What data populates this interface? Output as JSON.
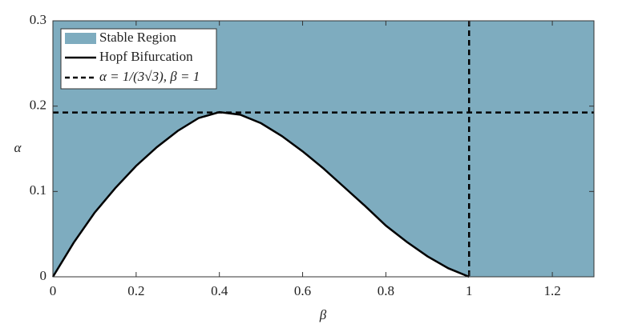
{
  "chart_data": {
    "type": "region",
    "x_label": "β",
    "y_label": "α",
    "xlim": [
      0,
      1.3
    ],
    "xticks": [
      0,
      0.2,
      0.4,
      0.6,
      0.8,
      1,
      1.2
    ],
    "ylim": [
      0,
      0.3
    ],
    "yticks": [
      0,
      0.1,
      0.2,
      0.3
    ],
    "x": [
      0,
      0.05,
      0.1,
      0.15,
      0.2,
      0.25,
      0.3,
      0.35,
      0.4,
      0.45,
      0.5,
      0.55,
      0.6,
      0.65,
      0.7,
      0.75,
      0.8,
      0.85,
      0.9,
      0.95,
      1
    ],
    "series": [
      {
        "name": "Stable Region",
        "color": "#7eacbf"
      },
      {
        "name": "Hopf Bifurcation",
        "color": "#000000",
        "values": [
          0,
          0.04,
          0.075,
          0.104,
          0.13,
          0.152,
          0.171,
          0.186,
          0.193,
          0.19,
          0.18,
          0.165,
          0.147,
          0.127,
          0.105,
          0.083,
          0.06,
          0.041,
          0.024,
          0.01,
          0
        ]
      }
    ],
    "reference": {
      "name": "α = 1/(3√3),  β = 1",
      "alpha": 0.1925,
      "beta": 1,
      "color": "#000000"
    }
  }
}
